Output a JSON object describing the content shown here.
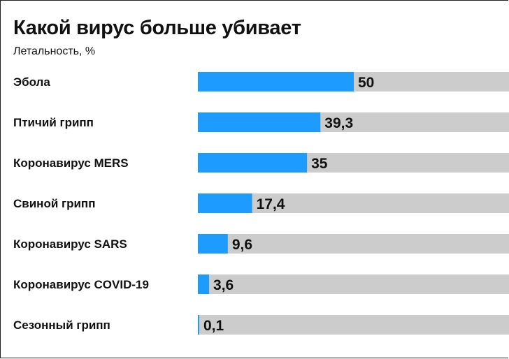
{
  "title": "Какой вирус больше убивает",
  "subtitle": "Летальность, %",
  "colors": {
    "bar": "#1e9bff",
    "track": "#cccccc",
    "text": "#111111"
  },
  "chart_data": {
    "type": "bar",
    "orientation": "horizontal",
    "categories": [
      "Эбола",
      "Птичий грипп",
      "Коронавирус MERS",
      "Свиной грипп",
      "Коронавирус SARS",
      "Коронавирус COVID-19",
      "Сезонный грипп"
    ],
    "values": [
      50,
      39.3,
      35,
      17.4,
      9.6,
      3.6,
      0.1
    ],
    "value_labels": [
      "50",
      "39,3",
      "35",
      "17,4",
      "9,6",
      "3,6",
      "0,1"
    ],
    "title": "Какой вирус больше убивает",
    "subtitle": "Летальность, %",
    "xlim": [
      0,
      100
    ],
    "grid": false,
    "legend": "none"
  }
}
